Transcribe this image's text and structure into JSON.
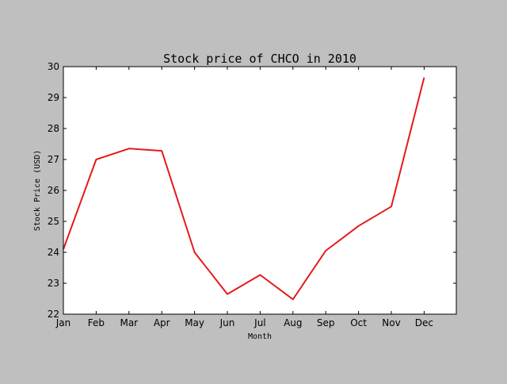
{
  "chart_data": {
    "type": "line",
    "title": "Stock price of CHCO in 2010",
    "xlabel": "Month",
    "ylabel": "Stock Price (USD)",
    "categories": [
      "Jan",
      "Feb",
      "Mar",
      "Apr",
      "May",
      "Jun",
      "Jul",
      "Aug",
      "Sep",
      "Oct",
      "Nov",
      "Dec"
    ],
    "series": [
      {
        "values": [
          24.1,
          27.0,
          27.35,
          27.28,
          24.0,
          22.65,
          23.27,
          22.48,
          24.05,
          24.85,
          25.48,
          29.65
        ],
        "color": "#e31a1c"
      }
    ],
    "ylim": [
      22,
      30
    ],
    "yticks": [
      22,
      23,
      24,
      25,
      26,
      27,
      28,
      29,
      30
    ],
    "grid": false,
    "legend": "none"
  }
}
